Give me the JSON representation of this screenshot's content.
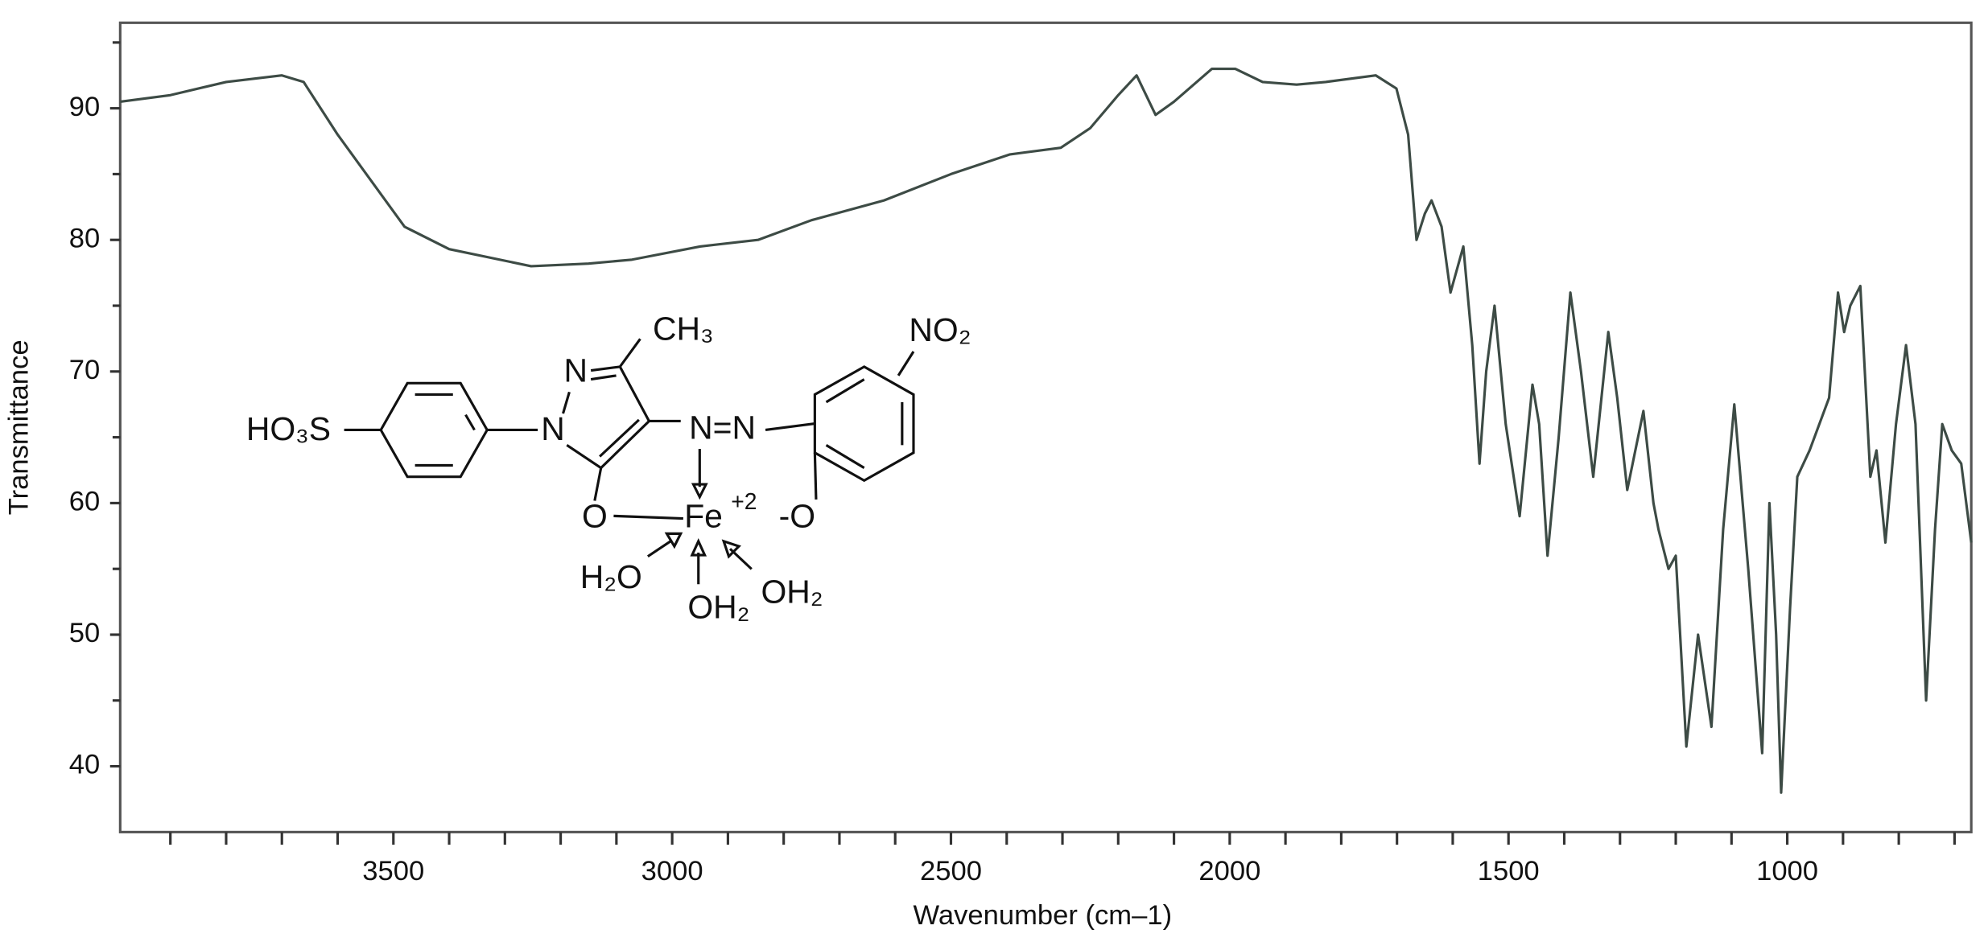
{
  "chart_data": {
    "type": "line",
    "xlabel": "Wavenumber (cm–1)",
    "ylabel": "Transmittance",
    "xlim": [
      3990,
      670
    ],
    "ylim": [
      35,
      96.5
    ],
    "xticks": [
      3500,
      3000,
      2500,
      2000,
      1500,
      1000
    ],
    "xminorticks": [
      3900,
      3800,
      3700,
      3600,
      3400,
      3300,
      3200,
      3100,
      2900,
      2800,
      2700,
      2600,
      2400,
      2300,
      2200,
      2100,
      1900,
      1800,
      1700,
      1600,
      1400,
      1300,
      1200,
      1100,
      900,
      800,
      700
    ],
    "yticks": [
      40,
      50,
      60,
      70,
      80,
      90
    ],
    "yminorticks": [
      45,
      55,
      65,
      75,
      85,
      95
    ],
    "color": "#3d4b45",
    "x": [
      3990,
      3900,
      3800,
      3700,
      3661,
      3600,
      3480,
      3400,
      3253,
      3150,
      3072,
      2950,
      2846,
      2750,
      2620,
      2500,
      2394,
      2303,
      2250,
      2200,
      2167,
      2133,
      2100,
      2032,
      1990,
      1941,
      1880,
      1828,
      1738,
      1701,
      1680,
      1665,
      1650,
      1638,
      1620,
      1604,
      1581,
      1565,
      1552,
      1540,
      1525,
      1505,
      1480,
      1457,
      1445,
      1430,
      1410,
      1389,
      1370,
      1348,
      1321,
      1305,
      1287,
      1258,
      1240,
      1231,
      1213,
      1200,
      1181,
      1160,
      1136,
      1115,
      1095,
      1070,
      1045,
      1032,
      1020,
      1011,
      995,
      982,
      960,
      925,
      909,
      898,
      887,
      869,
      851,
      840,
      824,
      805,
      787,
      770,
      751,
      735,
      722,
      705,
      688,
      670
    ],
    "values": [
      90.5,
      91,
      92,
      92.5,
      92,
      88,
      81,
      79.3,
      78,
      78.2,
      78.5,
      79.5,
      80,
      81.5,
      83,
      85,
      86.5,
      87,
      88.5,
      91,
      92.5,
      89.5,
      90.5,
      93,
      93,
      92,
      91.8,
      92,
      92.5,
      91.5,
      88,
      80,
      82,
      83,
      81,
      76,
      79.5,
      72,
      63,
      70,
      75,
      66,
      59,
      69,
      66,
      56,
      65,
      76,
      70,
      62,
      73,
      68,
      61,
      67,
      60,
      58,
      55,
      56,
      41.5,
      50,
      43,
      58,
      67.5,
      55,
      41,
      60,
      50,
      38,
      52,
      62,
      64,
      68,
      76,
      73,
      75,
      76.5,
      62,
      64,
      57,
      66,
      72,
      66,
      45,
      58,
      66,
      64,
      63,
      57
    ],
    "structure": {
      "labels": [
        "HO₃S",
        "N",
        "N",
        "CH₃",
        "N=N",
        "NO₂",
        "O",
        "Fe",
        "+2",
        "-O",
        "H₂O",
        "OH₂",
        "OH₂"
      ]
    }
  }
}
